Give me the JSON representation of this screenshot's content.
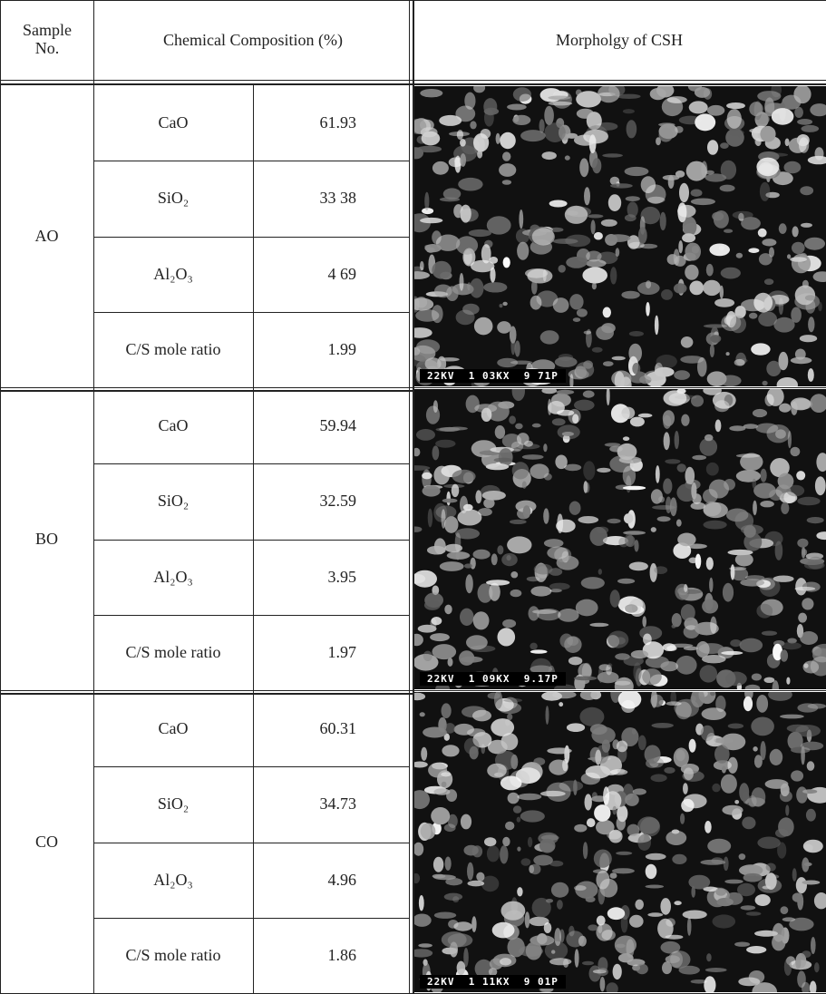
{
  "header": {
    "sample": "Sample No.",
    "composition": "Chemical Composition (%)",
    "morphology": "Morpholgy of CSH"
  },
  "samples": [
    {
      "name": "AO",
      "rows": [
        [
          "CaO",
          "61.93"
        ],
        [
          "SiO₂",
          "33 38"
        ],
        [
          "Al₂O₃",
          "4 69"
        ],
        [
          "C/S mole ratio",
          "1.99"
        ]
      ],
      "micrograph_label": "22KV  1 03KX  9 71P"
    },
    {
      "name": "BO",
      "rows": [
        [
          "CaO",
          "59.94"
        ],
        [
          "SiO₂",
          "32.59"
        ],
        [
          "Al₂O₃",
          "3.95"
        ],
        [
          "C/S mole ratio",
          "1.97"
        ]
      ],
      "micrograph_label": "22KV  1 09KX  9.17P"
    },
    {
      "name": "CO",
      "rows": [
        [
          "CaO",
          "60.31"
        ],
        [
          "SiO₂",
          "34.73"
        ],
        [
          "Al₂O₃",
          "4.96"
        ],
        [
          "C/S mole ratio",
          "1.86"
        ]
      ],
      "micrograph_label": "22KV  1 11KX  9 01P"
    }
  ]
}
